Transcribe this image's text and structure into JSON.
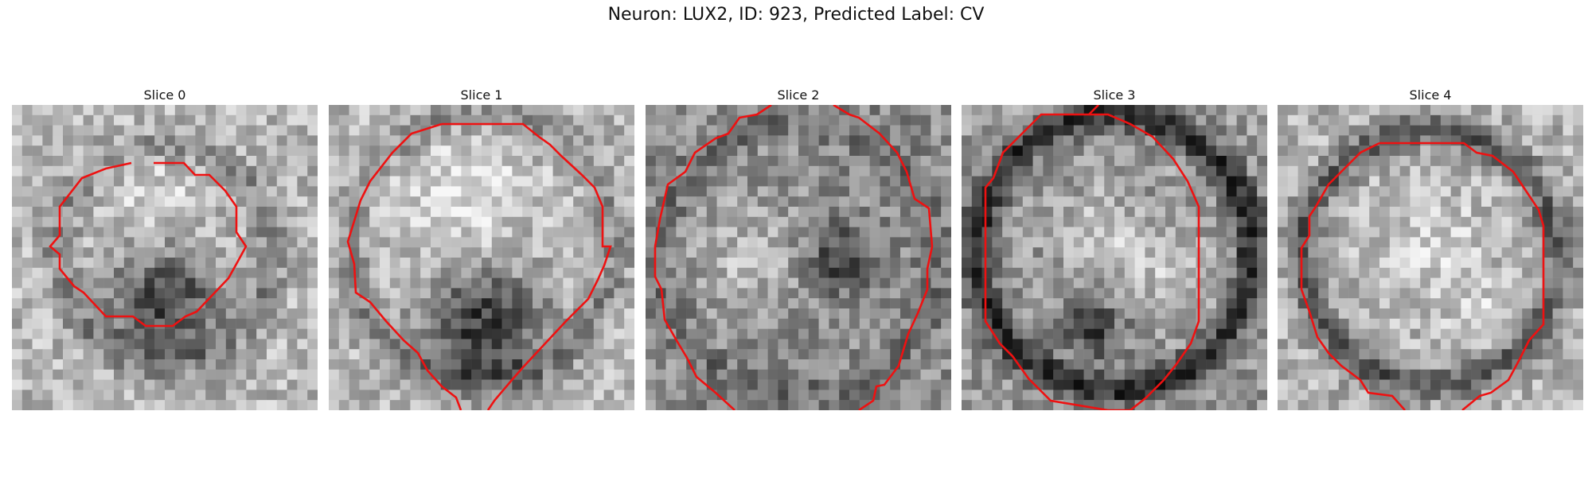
{
  "figure": {
    "suptitle": "Neuron: LUX2, ID: 923, Predicted Label: CV",
    "contour_color": "#ee1111",
    "panels": [
      {
        "title": "Slice 0"
      },
      {
        "title": "Slice 1"
      },
      {
        "title": "Slice 2"
      },
      {
        "title": "Slice 3"
      },
      {
        "title": "Slice 4"
      }
    ]
  }
}
